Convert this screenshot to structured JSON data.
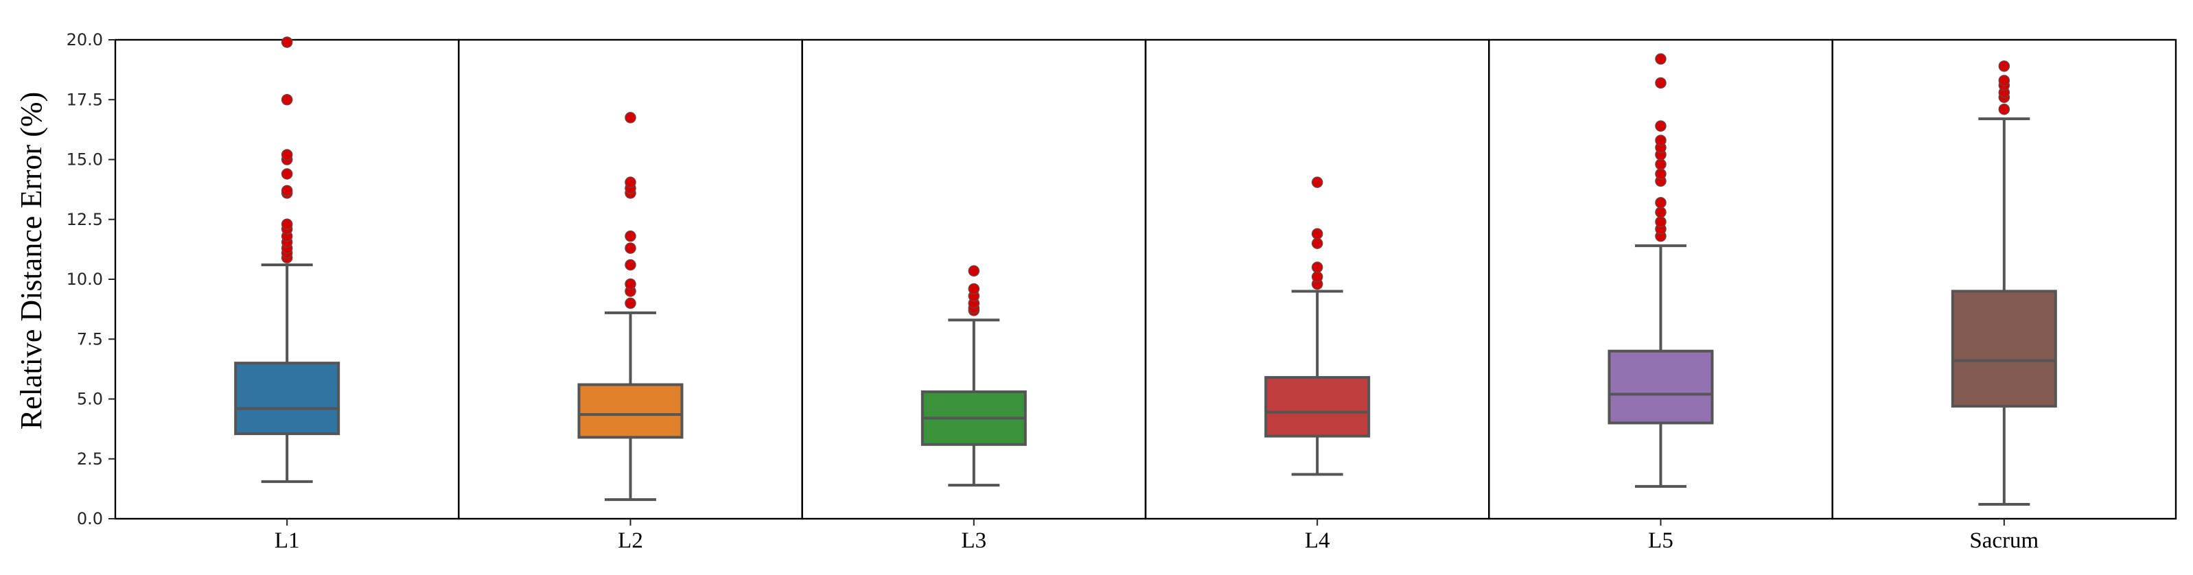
{
  "chart_data": {
    "type": "box",
    "ylabel": "Relative Distance Error (%)",
    "xlabel": "",
    "ylim": [
      0,
      20
    ],
    "yticks": [
      "0.0",
      "2.5",
      "5.0",
      "7.5",
      "10.0",
      "12.5",
      "15.0",
      "17.5",
      "20.0"
    ],
    "grid": false,
    "outlier_color": "#d40000",
    "boxes": [
      {
        "label": "L1",
        "color": "#3274a1",
        "whisker_low": 1.55,
        "q1": 3.55,
        "median": 4.6,
        "q3": 6.5,
        "whisker_high": 10.6,
        "outliers": [
          10.9,
          11.1,
          11.3,
          11.55,
          11.8,
          12.1,
          12.3,
          13.6,
          13.7,
          14.4,
          15.0,
          15.2,
          17.5,
          19.9
        ]
      },
      {
        "label": "L2",
        "color": "#e1812c",
        "whisker_low": 0.8,
        "q1": 3.4,
        "median": 4.35,
        "q3": 5.6,
        "whisker_high": 8.6,
        "outliers": [
          9.0,
          9.5,
          9.8,
          10.6,
          11.3,
          11.8,
          13.6,
          13.8,
          14.05,
          16.75
        ]
      },
      {
        "label": "L3",
        "color": "#3a923a",
        "whisker_low": 1.4,
        "q1": 3.1,
        "median": 4.2,
        "q3": 5.3,
        "whisker_high": 8.3,
        "outliers": [
          8.7,
          8.8,
          9.0,
          9.3,
          9.6,
          10.35
        ]
      },
      {
        "label": "L4",
        "color": "#c03d3e",
        "whisker_low": 1.85,
        "q1": 3.45,
        "median": 4.45,
        "q3": 5.9,
        "whisker_high": 9.5,
        "outliers": [
          9.8,
          10.1,
          10.5,
          11.5,
          11.9,
          14.05
        ]
      },
      {
        "label": "L5",
        "color": "#9372b2",
        "whisker_low": 1.35,
        "q1": 4.0,
        "median": 5.2,
        "q3": 7.0,
        "whisker_high": 11.4,
        "outliers": [
          11.8,
          12.1,
          12.4,
          12.8,
          13.2,
          14.1,
          14.4,
          14.8,
          15.2,
          15.5,
          15.8,
          16.4,
          18.2,
          19.2
        ]
      },
      {
        "label": "Sacrum",
        "color": "#845b53",
        "whisker_low": 0.6,
        "q1": 4.7,
        "median": 6.6,
        "q3": 9.5,
        "whisker_high": 16.7,
        "outliers": [
          17.1,
          17.6,
          17.8,
          18.1,
          18.3,
          18.9
        ]
      }
    ]
  }
}
